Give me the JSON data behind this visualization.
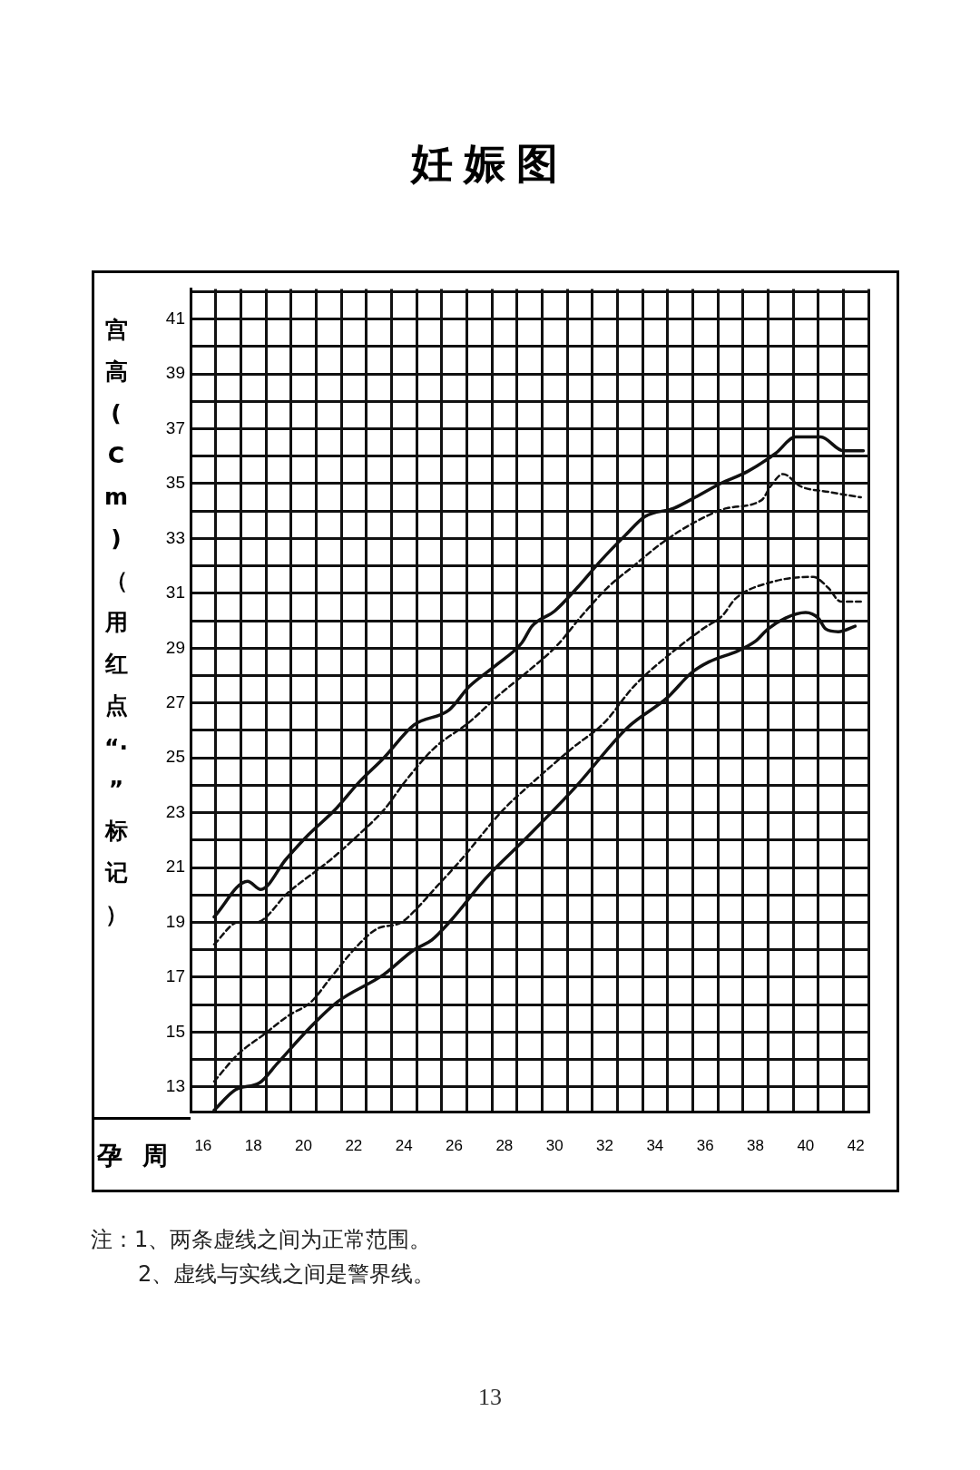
{
  "chart_data": {
    "type": "line",
    "title": "妊娠图",
    "ylabel": "宫高(Cm)（用红点“·”标记）",
    "xlabel": "孕周",
    "xlim": [
      15.5,
      42.5
    ],
    "ylim": [
      12.1,
      42.1
    ],
    "xticks": [
      {
        "value": 15.5,
        "label": null
      },
      16,
      {
        "value": 16.5,
        "label": null
      },
      {
        "value": 17.5,
        "label": null
      },
      18,
      {
        "value": 18.5,
        "label": null
      },
      {
        "value": 19.5,
        "label": null
      },
      20,
      {
        "value": 20.5,
        "label": null
      },
      {
        "value": 21.5,
        "label": null
      },
      22,
      {
        "value": 22.5,
        "label": null
      },
      {
        "value": 23.5,
        "label": null
      },
      24,
      {
        "value": 24.5,
        "label": null
      },
      {
        "value": 25.5,
        "label": null
      },
      26,
      {
        "value": 26.5,
        "label": null
      },
      {
        "value": 27.5,
        "label": null
      },
      28,
      {
        "value": 28.5,
        "label": null
      },
      {
        "value": 29.5,
        "label": null
      },
      30,
      {
        "value": 30.5,
        "label": null
      },
      {
        "value": 31.5,
        "label": null
      },
      32,
      {
        "value": 32.5,
        "label": null
      },
      {
        "value": 33.5,
        "label": null
      },
      34,
      {
        "value": 34.5,
        "label": null
      },
      {
        "value": 35.5,
        "label": null
      },
      36,
      {
        "value": 36.5,
        "label": null
      },
      {
        "value": 37.5,
        "label": null
      },
      38,
      {
        "value": 38.5,
        "label": null
      },
      {
        "value": 39.5,
        "label": null
      },
      40,
      {
        "value": 40.5,
        "label": null
      },
      {
        "value": 41.5,
        "label": null
      },
      42,
      {
        "value": 42.5,
        "label": null
      }
    ],
    "yticks": [
      13,
      {
        "value": 14,
        "label": null
      },
      15,
      {
        "value": 16,
        "label": null
      },
      17,
      {
        "value": 18,
        "label": null
      },
      19,
      {
        "value": 20,
        "label": null
      },
      21,
      {
        "value": 22,
        "label": null
      },
      23,
      {
        "value": 24,
        "label": null
      },
      25,
      {
        "value": 26,
        "label": null
      },
      27,
      {
        "value": 28,
        "label": null
      },
      29,
      {
        "value": 30,
        "label": null
      },
      31,
      {
        "value": 32,
        "label": null
      },
      33,
      {
        "value": 34,
        "label": null
      },
      35,
      {
        "value": 36,
        "label": null
      },
      37,
      {
        "value": 38,
        "label": null
      },
      39,
      {
        "value": 40,
        "label": null
      },
      41,
      {
        "value": 42,
        "label": null
      }
    ],
    "grid": true,
    "marker": "none",
    "series": [
      {
        "color": "#111111",
        "line_style": "solid",
        "x": [
          16.44,
          17.77,
          18.3,
          19.3,
          20.2,
          21.25,
          22.2,
          23.2,
          24.4,
          25.8,
          26.6,
          27.7,
          28.7,
          29.1,
          30.0,
          30.9,
          31.85,
          32.8,
          33.6,
          34.75,
          35.6,
          36.6,
          37.7,
          38.8,
          39.6,
          40.6,
          41.5,
          42.3
        ],
        "values": [
          19.2,
          20.5,
          20.2,
          21.3,
          22.2,
          23.1,
          24.1,
          25.0,
          26.2,
          26.75,
          27.6,
          28.4,
          29.2,
          29.8,
          30.35,
          31.2,
          32.2,
          33.1,
          33.8,
          34.1,
          34.5,
          35.0,
          35.45,
          36.1,
          36.7,
          36.7,
          36.2,
          36.2
        ]
      },
      {
        "color": "#111111",
        "line_style": "dashed",
        "x": [
          16.44,
          17.4,
          18.1,
          19.4,
          21.1,
          22.2,
          23.2,
          24.1,
          25.2,
          26.6,
          27.8,
          29.0,
          30.1,
          31.1,
          32.1,
          33.15,
          34.3,
          35.6,
          36.85,
          38.25,
          38.6,
          39.1,
          39.8,
          40.9,
          42.2
        ],
        "values": [
          18.2,
          19.0,
          19.0,
          20.1,
          21.3,
          22.2,
          23.1,
          24.2,
          25.35,
          26.3,
          27.3,
          28.2,
          29.1,
          30.2,
          31.2,
          32.0,
          32.85,
          33.6,
          34.1,
          34.4,
          34.9,
          35.35,
          34.9,
          34.7,
          34.5
        ]
      },
      {
        "color": "#111111",
        "line_style": "dashed",
        "x": [
          16.44,
          17.4,
          18.4,
          19.4,
          20.3,
          21.1,
          22.1,
          22.9,
          23.9,
          24.4,
          25.3,
          26.2,
          27.95,
          29.0,
          30.7,
          32.0,
          33.15,
          34.75,
          35.9,
          36.7,
          37.2,
          38.6,
          40.3,
          40.9,
          41.4,
          42.2
        ],
        "values": [
          13.2,
          14.2,
          14.9,
          15.6,
          16.1,
          17.0,
          18.1,
          18.75,
          19.0,
          19.4,
          20.3,
          21.2,
          23.1,
          24.0,
          25.35,
          26.3,
          27.6,
          28.9,
          29.7,
          30.2,
          30.8,
          31.4,
          31.6,
          31.2,
          30.7,
          30.7
        ]
      },
      {
        "color": "#111111",
        "line_style": "solid",
        "x": [
          16.44,
          17.3,
          18.25,
          18.95,
          20.3,
          21.35,
          23.2,
          24.4,
          25.1,
          25.9,
          27.25,
          28.9,
          30.8,
          32.9,
          34.5,
          35.45,
          36.15,
          37.3,
          38.0,
          38.5,
          39.2,
          40.0,
          40.5,
          40.8,
          41.3,
          41.97
        ],
        "values": [
          12.15,
          12.9,
          13.15,
          13.85,
          15.2,
          16.1,
          17.1,
          18.0,
          18.35,
          19.1,
          20.6,
          22.1,
          23.9,
          26.1,
          27.2,
          28.1,
          28.5,
          28.9,
          29.25,
          29.7,
          30.1,
          30.3,
          30.1,
          29.7,
          29.6,
          29.8
        ]
      }
    ],
    "annotations": [
      "注：1、两条虚线之间为正常范围。",
      "2、虚线与实线之间是警界线。",
      "13"
    ]
  }
}
